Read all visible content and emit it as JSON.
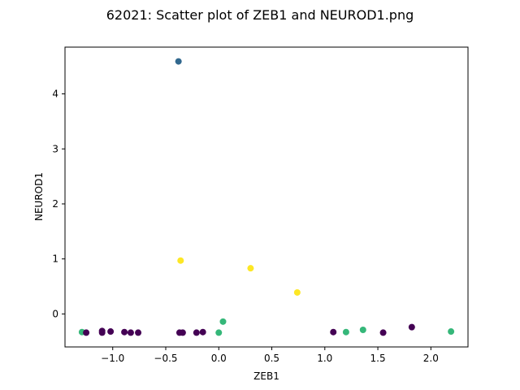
{
  "chart_data": {
    "type": "scatter",
    "title": "62021: Scatter plot of ZEB1 and NEUROD1.png",
    "xlabel": "ZEB1",
    "ylabel": "NEUROD1",
    "xlim": [
      -1.45,
      2.35
    ],
    "ylim": [
      -0.6,
      4.85
    ],
    "xticks": [
      -1.0,
      -0.5,
      0.0,
      0.5,
      1.0,
      1.5,
      2.0
    ],
    "xtick_labels": [
      "−1.0",
      "−0.5",
      "0.0",
      "0.5",
      "1.0",
      "1.5",
      "2.0"
    ],
    "yticks": [
      0,
      1,
      2,
      3,
      4
    ],
    "ytick_labels": [
      "0",
      "1",
      "2",
      "3",
      "4"
    ],
    "grid": false,
    "colors": {
      "purple": "#440154",
      "blue": "#31688e",
      "green": "#35b779",
      "yellow": "#fde725"
    },
    "points": [
      {
        "x": -1.29,
        "y": -0.33,
        "color": "green"
      },
      {
        "x": -1.25,
        "y": -0.34,
        "color": "purple"
      },
      {
        "x": -1.1,
        "y": -0.31,
        "color": "purple"
      },
      {
        "x": -1.1,
        "y": -0.34,
        "color": "purple"
      },
      {
        "x": -1.02,
        "y": -0.32,
        "color": "purple"
      },
      {
        "x": -0.89,
        "y": -0.33,
        "color": "purple"
      },
      {
        "x": -0.83,
        "y": -0.34,
        "color": "purple"
      },
      {
        "x": -0.76,
        "y": -0.34,
        "color": "purple"
      },
      {
        "x": -0.38,
        "y": 4.59,
        "color": "blue"
      },
      {
        "x": -0.37,
        "y": -0.34,
        "color": "purple"
      },
      {
        "x": -0.36,
        "y": 0.97,
        "color": "yellow"
      },
      {
        "x": -0.34,
        "y": -0.34,
        "color": "purple"
      },
      {
        "x": -0.21,
        "y": -0.34,
        "color": "purple"
      },
      {
        "x": -0.15,
        "y": -0.33,
        "color": "purple"
      },
      {
        "x": 0.0,
        "y": -0.34,
        "color": "green"
      },
      {
        "x": 0.04,
        "y": -0.14,
        "color": "green"
      },
      {
        "x": 0.3,
        "y": 0.83,
        "color": "yellow"
      },
      {
        "x": 0.74,
        "y": 0.39,
        "color": "yellow"
      },
      {
        "x": 1.08,
        "y": -0.33,
        "color": "purple"
      },
      {
        "x": 1.2,
        "y": -0.33,
        "color": "green"
      },
      {
        "x": 1.36,
        "y": -0.29,
        "color": "green"
      },
      {
        "x": 1.55,
        "y": -0.34,
        "color": "purple"
      },
      {
        "x": 1.82,
        "y": -0.24,
        "color": "purple"
      },
      {
        "x": 2.19,
        "y": -0.32,
        "color": "green"
      }
    ]
  }
}
